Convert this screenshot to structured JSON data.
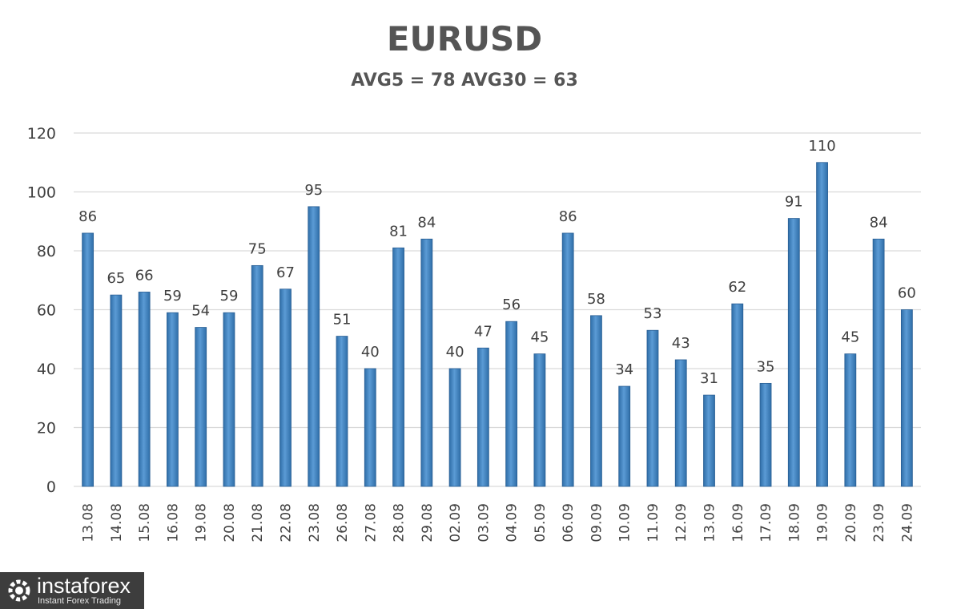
{
  "chart_data": {
    "type": "bar",
    "title": "EURUSD",
    "subtitle": "AVG5 = 78 AVG30 = 63",
    "xlabel": "",
    "ylabel": "",
    "ylim": [
      0,
      120
    ],
    "yticks": [
      0,
      20,
      40,
      60,
      80,
      100,
      120
    ],
    "grid": true,
    "legend": "none",
    "categories": [
      "13.08",
      "14.08",
      "15.08",
      "16.08",
      "19.08",
      "20.08",
      "21.08",
      "22.08",
      "23.08",
      "26.08",
      "27.08",
      "28.08",
      "29.08",
      "02.09",
      "03.09",
      "04.09",
      "05.09",
      "06.09",
      "09.09",
      "10.09",
      "11.09",
      "12.09",
      "13.09",
      "16.09",
      "17.09",
      "18.09",
      "19.09",
      "20.09",
      "23.09",
      "24.09"
    ],
    "values": [
      86,
      65,
      66,
      59,
      54,
      59,
      75,
      67,
      95,
      51,
      40,
      81,
      84,
      40,
      47,
      56,
      45,
      86,
      58,
      34,
      53,
      43,
      31,
      62,
      35,
      91,
      110,
      45,
      84,
      60
    ],
    "colors": {
      "bar": "#5b9bd5",
      "bar_dark": "#2f6ea8",
      "grid": "#d9d9d9",
      "text": "#404040"
    }
  },
  "logo": {
    "name": "instaforex",
    "tagline": "Instant Forex Trading"
  }
}
